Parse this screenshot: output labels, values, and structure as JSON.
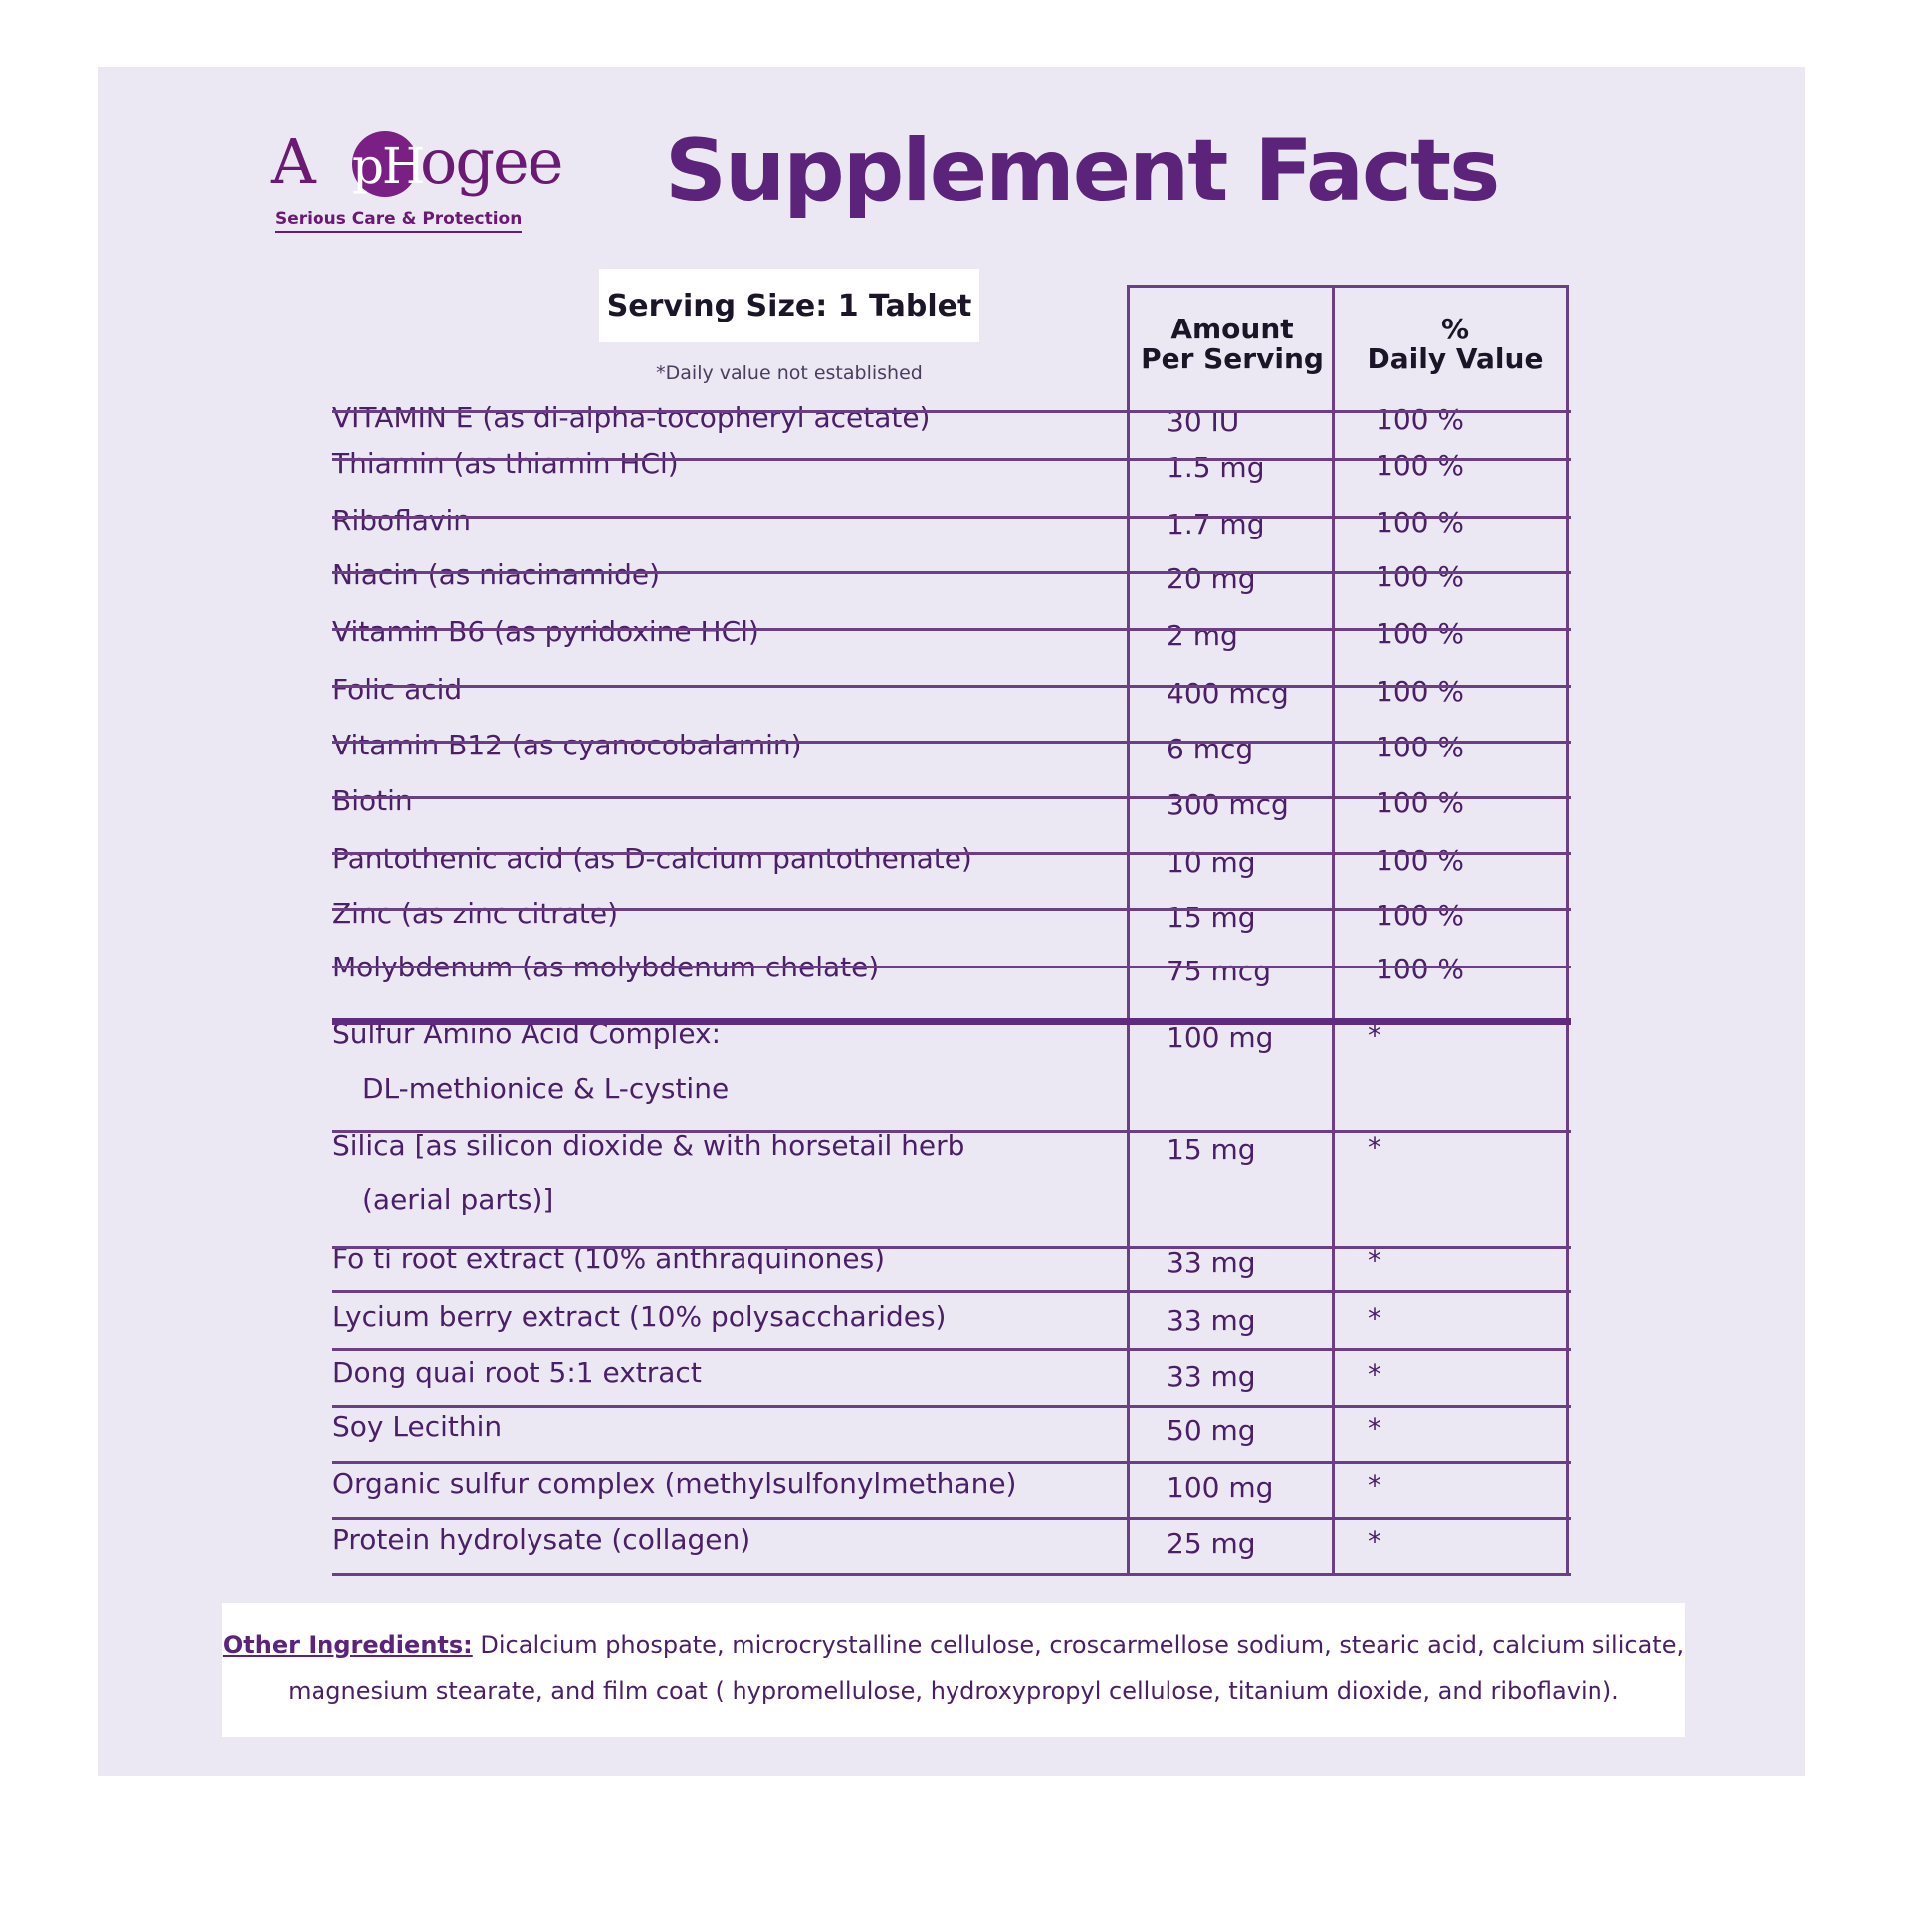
{
  "brand": {
    "name_parts": [
      "A",
      "pH",
      "ogee"
    ],
    "tagline": "Serious Care & Protection",
    "color": "#6b1a73"
  },
  "title": "Supplement Facts",
  "serving_size": "Serving Size: 1 Tablet",
  "dv_note": "*Daily value not established",
  "columns": {
    "amount": [
      "Amount",
      "Per Serving"
    ],
    "daily_value": [
      "%",
      "Daily Value"
    ]
  },
  "rows": [
    {
      "name": "VITAMIN E (as di-alpha-tocopheryl acetate)",
      "amount": "30 IU",
      "dv": "100 %"
    },
    {
      "name": "Thiamin (as thiamin HCl)",
      "amount": "1.5 mg",
      "dv": "100 %"
    },
    {
      "name": "Riboflavin",
      "amount": "1.7 mg",
      "dv": "100 %"
    },
    {
      "name": "Niacin (as niacinamide)",
      "amount": "20 mg",
      "dv": "100 %"
    },
    {
      "name": "Vitamin B6 (as pyridoxine HCl)",
      "amount": "2 mg",
      "dv": "100 %"
    },
    {
      "name": "Folic acid",
      "amount": "400 mcg",
      "dv": "100 %"
    },
    {
      "name": "Vitamin B12 (as cyanocobalamin)",
      "amount": "6 mcg",
      "dv": "100 %"
    },
    {
      "name": "Biotin",
      "amount": "300 mcg",
      "dv": "100 %"
    },
    {
      "name": "Pantothenic acid (as D-calcium pantothenate)",
      "amount": "10 mg",
      "dv": "100 %"
    },
    {
      "name": "Zinc (as zinc citrate)",
      "amount": "15 mg",
      "dv": "100 %"
    },
    {
      "name": "Molybdenum (as molybdenum chelate)",
      "amount": "75 mcg",
      "dv": "100 %"
    },
    {
      "name": "Sulfur Amino Acid Complex:",
      "sub": "DL-methionice & L-cystine",
      "amount": "100 mg",
      "dv": "*"
    },
    {
      "name": "Silica [as silicon dioxide & with horsetail herb",
      "sub": "(aerial parts)]",
      "amount": "15 mg",
      "dv": "*"
    },
    {
      "name": "Fo ti root extract (10% anthraquinones)",
      "amount": "33 mg",
      "dv": "*"
    },
    {
      "name": "Lycium berry extract (10% polysaccharides)",
      "amount": "33 mg",
      "dv": "*"
    },
    {
      "name": "Dong quai root 5:1 extract",
      "amount": "33 mg",
      "dv": "*"
    },
    {
      "name": "Soy Lecithin",
      "amount": "50 mg",
      "dv": "*"
    },
    {
      "name": "Organic sulfur complex (methylsulfonylmethane)",
      "amount": "100 mg",
      "dv": "*"
    },
    {
      "name": "Protein hydrolysate (collagen)",
      "amount": "25 mg",
      "dv": "*"
    }
  ],
  "other_ingredients": {
    "label": "Other Ingredients:",
    "text": " Dicalcium phospate, microcrystalline cellulose, croscarmellose sodium, stearic acid, calcium silicate, magnesium stearate, and film coat ( hypromellulose, hydroxypropyl cellulose, titanium dioxide, and riboflavin)."
  }
}
